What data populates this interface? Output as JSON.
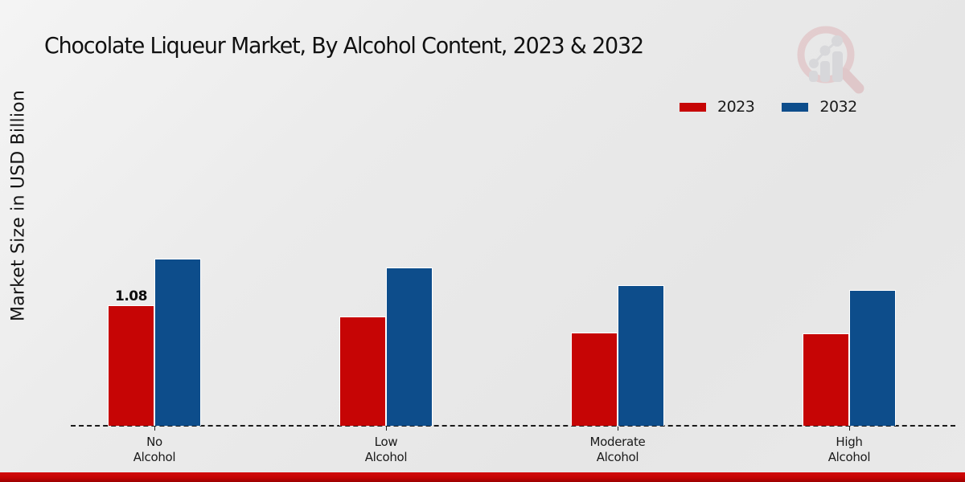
{
  "title": "Chocolate Liqueur Market, By Alcohol Content, 2023 & 2032",
  "y_axis_label": "Market Size in USD Billion",
  "colors": {
    "series_2023": "#c60505",
    "series_2032": "#0d4d8b",
    "background": "#e9e9e9",
    "bottom_strip": "#c40404",
    "axis": "#1b1b1b"
  },
  "legend": {
    "position": "top-right",
    "items": [
      "2023",
      "2032"
    ]
  },
  "watermark": "market-research-logo",
  "chart_data": {
    "type": "bar",
    "title": "Chocolate Liqueur Market, By Alcohol Content, 2023 & 2032",
    "xlabel": "",
    "ylabel": "Market Size in USD Billion",
    "categories": [
      "No Alcohol",
      "Low Alcohol",
      "Moderate Alcohol",
      "High Alcohol"
    ],
    "series": [
      {
        "name": "2023",
        "color": "#c60505",
        "values": [
          1.08,
          0.98,
          0.84,
          0.83
        ]
      },
      {
        "name": "2032",
        "color": "#0d4d8b",
        "values": [
          1.5,
          1.42,
          1.26,
          1.22
        ]
      }
    ],
    "data_labels": [
      {
        "series": "2023",
        "category": "No Alcohol",
        "text": "1.08"
      }
    ],
    "ylim": [
      0,
      1.6
    ],
    "grid": false,
    "axis_style": "dashed-baseline-only",
    "legend_position": "upper right"
  }
}
